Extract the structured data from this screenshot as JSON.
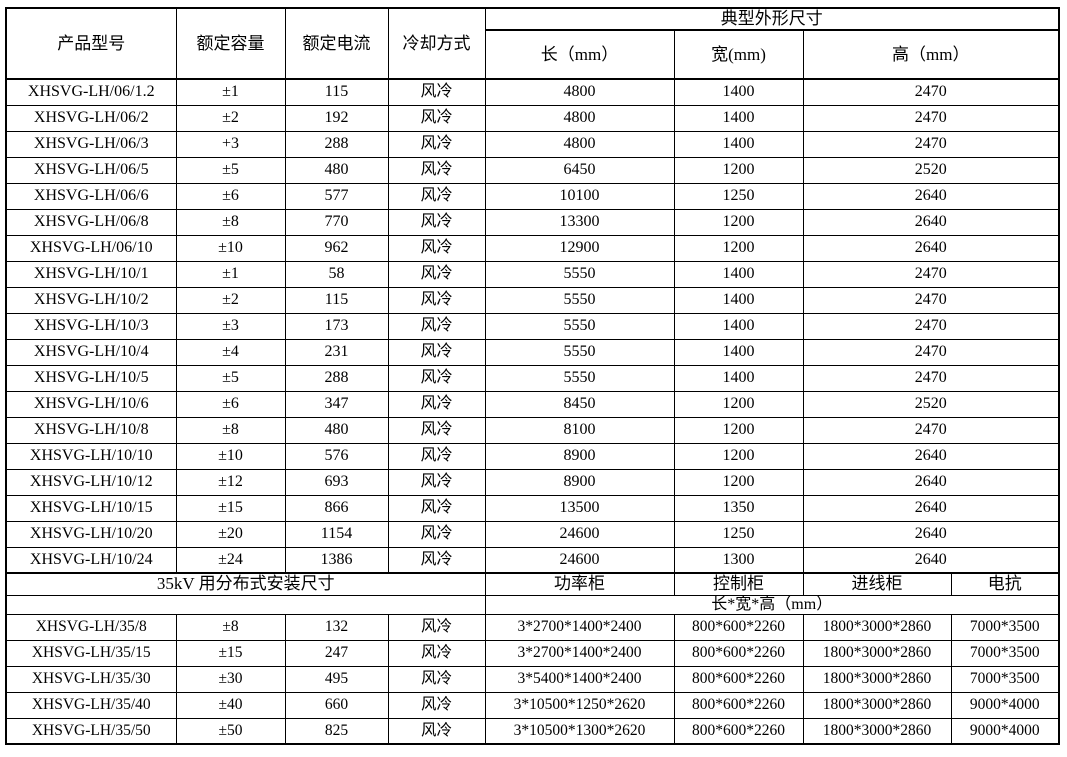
{
  "table": {
    "header": {
      "col_model": "产品型号",
      "col_capacity": "额定容量",
      "col_current": "额定电流",
      "col_cooling": "冷却方式",
      "col_dims_group": "典型外形尺寸",
      "col_length": "长（mm）",
      "col_width": "宽(mm)",
      "col_height": "高（mm）"
    },
    "main_rows": [
      {
        "model": "XHSVG-LH/06/1.2",
        "capacity": "±1",
        "current": "115",
        "cooling": "风冷",
        "length": "4800",
        "width": "1400",
        "height": "2470"
      },
      {
        "model": "XHSVG-LH/06/2",
        "capacity": "±2",
        "current": "192",
        "cooling": "风冷",
        "length": "4800",
        "width": "1400",
        "height": "2470"
      },
      {
        "model": "XHSVG-LH/06/3",
        "capacity": "+3",
        "current": "288",
        "cooling": "风冷",
        "length": "4800",
        "width": "1400",
        "height": "2470"
      },
      {
        "model": "XHSVG-LH/06/5",
        "capacity": "±5",
        "current": "480",
        "cooling": "风冷",
        "length": "6450",
        "width": "1200",
        "height": "2520"
      },
      {
        "model": "XHSVG-LH/06/6",
        "capacity": "±6",
        "current": "577",
        "cooling": "风冷",
        "length": "10100",
        "width": "1250",
        "height": "2640"
      },
      {
        "model": "XHSVG-LH/06/8",
        "capacity": "±8",
        "current": "770",
        "cooling": "风冷",
        "length": "13300",
        "width": "1200",
        "height": "2640"
      },
      {
        "model": "XHSVG-LH/06/10",
        "capacity": "±10",
        "current": "962",
        "cooling": "风冷",
        "length": "12900",
        "width": "1200",
        "height": "2640"
      },
      {
        "model": "XHSVG-LH/10/1",
        "capacity": "±1",
        "current": "58",
        "cooling": "风冷",
        "length": "5550",
        "width": "1400",
        "height": "2470"
      },
      {
        "model": "XHSVG-LH/10/2",
        "capacity": "±2",
        "current": "115",
        "cooling": "风冷",
        "length": "5550",
        "width": "1400",
        "height": "2470"
      },
      {
        "model": "XHSVG-LH/10/3",
        "capacity": "±3",
        "current": "173",
        "cooling": "风冷",
        "length": "5550",
        "width": "1400",
        "height": "2470"
      },
      {
        "model": "XHSVG-LH/10/4",
        "capacity": "±4",
        "current": "231",
        "cooling": "风冷",
        "length": "5550",
        "width": "1400",
        "height": "2470"
      },
      {
        "model": "XHSVG-LH/10/5",
        "capacity": "±5",
        "current": "288",
        "cooling": "风冷",
        "length": "5550",
        "width": "1400",
        "height": "2470"
      },
      {
        "model": "XHSVG-LH/10/6",
        "capacity": "±6",
        "current": "347",
        "cooling": "风冷",
        "length": "8450",
        "width": "1200",
        "height": "2520"
      },
      {
        "model": "XHSVG-LH/10/8",
        "capacity": "±8",
        "current": "480",
        "cooling": "风冷",
        "length": "8100",
        "width": "1200",
        "height": "2470"
      },
      {
        "model": "XHSVG-LH/10/10",
        "capacity": "±10",
        "current": "576",
        "cooling": "风冷",
        "length": "8900",
        "width": "1200",
        "height": "2640"
      },
      {
        "model": "XHSVG-LH/10/12",
        "capacity": "±12",
        "current": "693",
        "cooling": "风冷",
        "length": "8900",
        "width": "1200",
        "height": "2640"
      },
      {
        "model": "XHSVG-LH/10/15",
        "capacity": "±15",
        "current": "866",
        "cooling": "风冷",
        "length": "13500",
        "width": "1350",
        "height": "2640"
      },
      {
        "model": "XHSVG-LH/10/20",
        "capacity": "±20",
        "current": "1154",
        "cooling": "风冷",
        "length": "24600",
        "width": "1250",
        "height": "2640"
      },
      {
        "model": "XHSVG-LH/10/24",
        "capacity": "±24",
        "current": "1386",
        "cooling": "风冷",
        "length": "24600",
        "width": "1300",
        "height": "2640"
      }
    ],
    "section_35kv": {
      "title": "35kV 用分布式安装尺寸",
      "col_power_cabinet": "功率柜",
      "col_control_cabinet": "控制柜",
      "col_incoming_cabinet": "进线柜",
      "col_reactor": "电抗",
      "dims_label": "长*宽*高（mm）",
      "rows": [
        {
          "model": "XHSVG-LH/35/8",
          "capacity": "±8",
          "current": "132",
          "cooling": "风冷",
          "power_cabinet": "3*2700*1400*2400",
          "control_cabinet": "800*600*2260",
          "incoming_cabinet": "1800*3000*2860",
          "reactor": "7000*3500"
        },
        {
          "model": "XHSVG-LH/35/15",
          "capacity": "±15",
          "current": "247",
          "cooling": "风冷",
          "power_cabinet": "3*2700*1400*2400",
          "control_cabinet": "800*600*2260",
          "incoming_cabinet": "1800*3000*2860",
          "reactor": "7000*3500"
        },
        {
          "model": "XHSVG-LH/35/30",
          "capacity": "±30",
          "current": "495",
          "cooling": "风冷",
          "power_cabinet": "3*5400*1400*2400",
          "control_cabinet": "800*600*2260",
          "incoming_cabinet": "1800*3000*2860",
          "reactor": "7000*3500"
        },
        {
          "model": "XHSVG-LH/35/40",
          "capacity": "±40",
          "current": "660",
          "cooling": "风冷",
          "power_cabinet": "3*10500*1250*2620",
          "control_cabinet": "800*600*2260",
          "incoming_cabinet": "1800*3000*2860",
          "reactor": "9000*4000"
        },
        {
          "model": "XHSVG-LH/35/50",
          "capacity": "±50",
          "current": "825",
          "cooling": "风冷",
          "power_cabinet": "3*10500*1300*2620",
          "control_cabinet": "800*600*2260",
          "incoming_cabinet": "1800*3000*2860",
          "reactor": "9000*4000"
        }
      ]
    }
  }
}
